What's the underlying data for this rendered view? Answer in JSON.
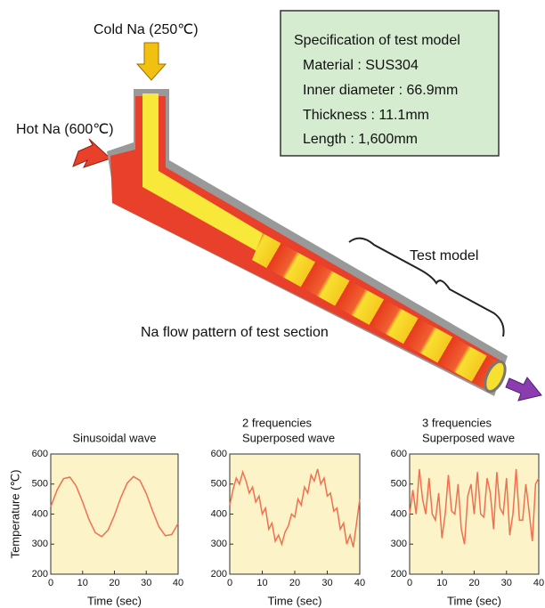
{
  "diagram": {
    "cold_label": "Cold Na (250℃)",
    "hot_label": "Hot Na (600℃)",
    "spec": {
      "title": "Specification of test model",
      "lines": [
        "Material : SUS304",
        "Inner diameter : 66.9mm",
        "Thickness : 11.1mm",
        "Length : 1,600mm"
      ]
    },
    "test_model_label": "Test model",
    "caption": "Na flow pattern of test section"
  },
  "chart_data": [
    {
      "type": "line",
      "title": [
        "Sinusoidal wave"
      ],
      "ylabel": "Temperature (℃)",
      "xlabel": "Time (sec)",
      "color": "#f07050",
      "background": "#fdf3c8",
      "x": [
        0,
        2,
        4,
        6,
        8,
        10,
        12,
        14,
        16,
        18,
        20,
        22,
        24,
        26,
        28,
        30,
        32,
        34,
        36,
        38,
        40
      ],
      "values": [
        425,
        481,
        518,
        523,
        493,
        440,
        382,
        338,
        325,
        347,
        396,
        455,
        503,
        525,
        512,
        468,
        410,
        357,
        328,
        332,
        369
      ],
      "xlim": [
        0,
        40
      ],
      "ylim": [
        200,
        600
      ],
      "xticks": [
        0,
        10,
        20,
        30,
        40
      ],
      "yticks": [
        200,
        300,
        400,
        500,
        600
      ]
    },
    {
      "type": "line",
      "title": [
        "2 frequencies",
        "Superposed wave"
      ],
      "xlabel": "Time (sec)",
      "color": "#f07050",
      "background": "#fdf3c8",
      "x": [
        0,
        1,
        2,
        3,
        4,
        5,
        6,
        7,
        8,
        9,
        10,
        11,
        12,
        13,
        14,
        15,
        16,
        17,
        18,
        19,
        20,
        21,
        22,
        23,
        24,
        25,
        26,
        27,
        28,
        29,
        30,
        31,
        32,
        33,
        34,
        35,
        36,
        37,
        38,
        39,
        40
      ],
      "values": [
        430,
        480,
        520,
        500,
        540,
        510,
        470,
        490,
        440,
        460,
        400,
        420,
        350,
        370,
        310,
        330,
        300,
        340,
        360,
        400,
        390,
        450,
        430,
        490,
        470,
        530,
        510,
        550,
        500,
        520,
        460,
        470,
        410,
        420,
        350,
        370,
        300,
        330,
        290,
        370,
        450
      ],
      "xlim": [
        0,
        40
      ],
      "ylim": [
        200,
        600
      ],
      "xticks": [
        0,
        10,
        20,
        30,
        40
      ],
      "yticks": [
        200,
        300,
        400,
        500,
        600
      ]
    },
    {
      "type": "line",
      "title": [
        "3 frequencies",
        "Superposed wave"
      ],
      "xlabel": "Time (sec)",
      "color": "#f07050",
      "background": "#fdf3c8",
      "x": [
        0,
        1,
        2,
        3,
        4,
        5,
        6,
        7,
        8,
        9,
        10,
        11,
        12,
        13,
        14,
        15,
        16,
        17,
        18,
        19,
        20,
        21,
        22,
        23,
        24,
        25,
        26,
        27,
        28,
        29,
        30,
        31,
        32,
        33,
        34,
        35,
        36,
        37,
        38,
        39,
        40
      ],
      "values": [
        400,
        480,
        400,
        550,
        450,
        400,
        520,
        400,
        380,
        470,
        320,
        400,
        530,
        410,
        400,
        500,
        350,
        300,
        460,
        500,
        400,
        540,
        400,
        390,
        520,
        470,
        350,
        540,
        420,
        400,
        520,
        330,
        400,
        550,
        380,
        380,
        500,
        410,
        310,
        500,
        520
      ],
      "xlim": [
        0,
        40
      ],
      "ylim": [
        200,
        600
      ],
      "xticks": [
        0,
        10,
        20,
        30,
        40
      ],
      "yticks": [
        200,
        300,
        400,
        500,
        600
      ]
    }
  ]
}
